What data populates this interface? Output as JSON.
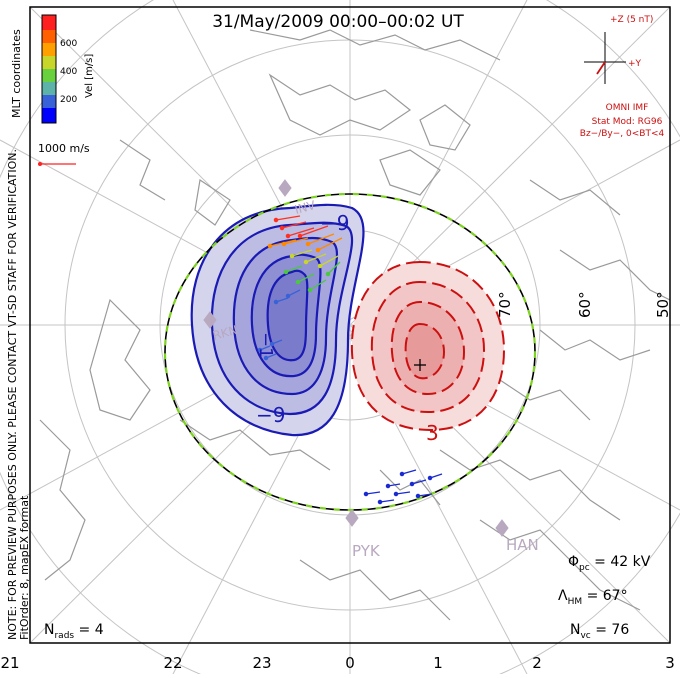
{
  "title": "31/May/2009 00:00–00:02 UT",
  "colorbar": {
    "label": "Vel [m/s]",
    "ticks": [
      "600",
      "400",
      "200"
    ],
    "colors": [
      "#0000ff",
      "#3a62d8",
      "#5db3a8",
      "#6ad13e",
      "#c8d62c",
      "#ffa000",
      "#ff6000",
      "#ff2020"
    ]
  },
  "coord_label": "MLT coordinates",
  "side_note": "NOTE: FOR PREVIEW PURPOSES ONLY. PLEASE CONTACT VT-SD STAFF FOR VERIFICATION.",
  "fit_note": "FitOrder: 8, mapEX format",
  "vector_scale": "1000 m/s",
  "imf": {
    "plus_z": "+Z (5 nT)",
    "plus_y": "+Y",
    "source": "OMNI IMF",
    "stat_mod": "Stat Mod: RG96",
    "condition": "Bz−/By−, 0<BT<4"
  },
  "lat_labels": [
    "70°",
    "60°",
    "50°"
  ],
  "radars": [
    "INV",
    "RKN",
    "PYK",
    "HAN"
  ],
  "contour_labels": [
    "−9",
    "−1",
    "−9",
    "3"
  ],
  "mlt_ticks": [
    "21",
    "22",
    "23",
    "0",
    "1",
    "2",
    "3"
  ],
  "stats": {
    "phi_pc": "42 kV",
    "lambda_hm": "67°",
    "n_vc": "76",
    "n_rads": "4"
  },
  "colors": {
    "negative": "#1a1ab4",
    "positive": "#cc1010",
    "boundary_dash": "#7ed321",
    "grid": "#bdbdbd",
    "coast": "#9a9a9a"
  }
}
